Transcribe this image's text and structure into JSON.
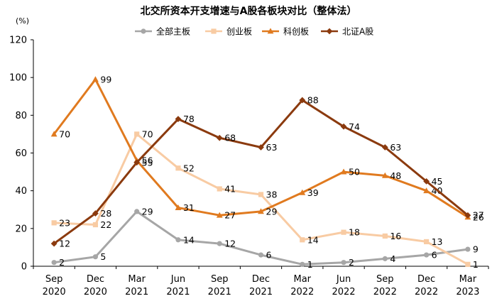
{
  "chart_data": {
    "type": "line",
    "title": "北交所资本开支增速与A股各板块对比（整体法）",
    "ylabel": "(%)",
    "xlabel": "",
    "ylim": [
      0,
      120
    ],
    "yticks": [
      0,
      20,
      40,
      60,
      80,
      100,
      120
    ],
    "grid": false,
    "legend_position": "top",
    "categories": [
      [
        "Sep",
        "2020"
      ],
      [
        "Dec",
        "2020"
      ],
      [
        "Mar",
        "2021"
      ],
      [
        "Jun",
        "2021"
      ],
      [
        "Sep",
        "2021"
      ],
      [
        "Dec",
        "2021"
      ],
      [
        "Mar",
        "2022"
      ],
      [
        "Jun",
        "2022"
      ],
      [
        "Sep",
        "2022"
      ],
      [
        "Dec",
        "2022"
      ],
      [
        "Mar",
        "2023"
      ]
    ],
    "series": [
      {
        "name": "全部主板",
        "color": "#a6a6a6",
        "marker": "circle",
        "values": [
          2,
          5,
          29,
          14,
          12,
          6,
          1,
          2,
          4,
          6,
          9
        ]
      },
      {
        "name": "创业板",
        "color": "#f8cba3",
        "marker": "square",
        "values": [
          23,
          22,
          70,
          52,
          41,
          38,
          14,
          18,
          16,
          13,
          1
        ]
      },
      {
        "name": "科创板",
        "color": "#e07a1f",
        "marker": "triangle",
        "values": [
          70,
          99,
          56,
          31,
          27,
          29,
          39,
          50,
          48,
          40,
          26
        ]
      },
      {
        "name": "北证A股",
        "color": "#8b3a0e",
        "marker": "diamond",
        "values": [
          12,
          28,
          55,
          78,
          68,
          63,
          88,
          74,
          63,
          45,
          27
        ]
      }
    ]
  }
}
